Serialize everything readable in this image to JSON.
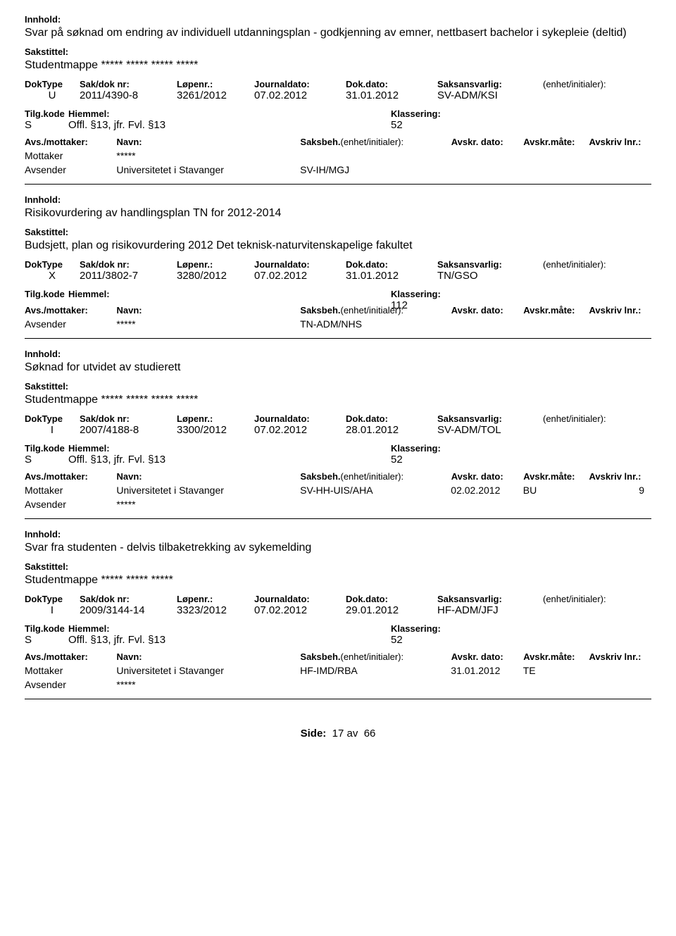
{
  "labels": {
    "innhold": "Innhold:",
    "sakstittel": "Sakstittel:",
    "dokType": "DokType",
    "sakNr": "Sak/dok nr:",
    "lopenr": "Løpenr.:",
    "journaldato": "Journaldato:",
    "dokdato": "Dok.dato:",
    "saksansvarlig": "Saksansvarlig:",
    "enhetInit": "(enhet/initialer):",
    "tilgKode": "Tilg.kode",
    "hiemmel": "Hiemmel:",
    "klassering": "Klassering:",
    "avsMottaker": "Avs./mottaker:",
    "navn": "Navn:",
    "saksbeh": "Saksbeh.",
    "saksbehEnhet": "(enhet/initialer):",
    "avskrDato": "Avskr. dato:",
    "avskrMate": "Avskr.måte:",
    "avskrivLnr": "Avskriv lnr.:",
    "side": "Side:",
    "av": "av"
  },
  "page": {
    "current": "17",
    "total": "66"
  },
  "records": [
    {
      "innhold": "Svar på søknad om endring av individuell utdanningsplan - godkjenning av emner, nettbasert bachelor i sykepleie (deltid)",
      "sakstittel": "Studentmappe ***** ***** ***** *****",
      "dokType": "U",
      "sakNr": "2011/4390-8",
      "lopenr": "3261/2012",
      "journaldato": "07.02.2012",
      "dokdato": "31.01.2012",
      "saksansvarlig": "SV-ADM/KSI",
      "tilgKode": "S",
      "hiemmel": "Offl. §13, jfr. Fvl. §13",
      "klassering": "52",
      "parties": [
        {
          "role": "Mottaker",
          "navn": "*****",
          "saksbeh": "",
          "avdato": "",
          "avmate": "",
          "avlnr": ""
        },
        {
          "role": "Avsender",
          "navn": "Universitetet i Stavanger",
          "saksbeh": "SV-IH/MGJ",
          "avdato": "",
          "avmate": "",
          "avlnr": ""
        }
      ]
    },
    {
      "innhold": "Risikovurdering av handlingsplan TN for 2012-2014",
      "sakstittel": "Budsjett, plan og risikovurdering 2012 Det teknisk-naturvitenskapelige fakultet",
      "dokType": "X",
      "sakNr": "2011/3802-7",
      "lopenr": "3280/2012",
      "journaldato": "07.02.2012",
      "dokdato": "31.01.2012",
      "saksansvarlig": "TN/GSO",
      "tilgKode": "",
      "hiemmel": "",
      "klassering": "112",
      "parties": [
        {
          "role": "Avsender",
          "navn": "*****",
          "saksbeh": "TN-ADM/NHS",
          "avdato": "",
          "avmate": "",
          "avlnr": ""
        }
      ]
    },
    {
      "innhold": "Søknad for utvidet av studierett",
      "sakstittel": "Studentmappe ***** ***** ***** *****",
      "dokType": "I",
      "sakNr": "2007/4188-8",
      "lopenr": "3300/2012",
      "journaldato": "07.02.2012",
      "dokdato": "28.01.2012",
      "saksansvarlig": "SV-ADM/TOL",
      "tilgKode": "S",
      "hiemmel": "Offl. §13, jfr. Fvl. §13",
      "klassering": "52",
      "parties": [
        {
          "role": "Mottaker",
          "navn": "Universitetet i Stavanger",
          "saksbeh": "SV-HH-UIS/AHA",
          "avdato": "02.02.2012",
          "avmate": "BU",
          "avlnr": "9"
        },
        {
          "role": "Avsender",
          "navn": "*****",
          "saksbeh": "",
          "avdato": "",
          "avmate": "",
          "avlnr": ""
        }
      ]
    },
    {
      "innhold": "Svar fra studenten - delvis tilbaketrekking av sykemelding",
      "sakstittel": "Studentmappe ***** ***** *****",
      "dokType": "I",
      "sakNr": "2009/3144-14",
      "lopenr": "3323/2012",
      "journaldato": "07.02.2012",
      "dokdato": "29.01.2012",
      "saksansvarlig": "HF-ADM/JFJ",
      "tilgKode": "S",
      "hiemmel": "Offl. §13, jfr. Fvl. §13",
      "klassering": "52",
      "parties": [
        {
          "role": "Mottaker",
          "navn": "Universitetet i Stavanger",
          "saksbeh": "HF-IMD/RBA",
          "avdato": "31.01.2012",
          "avmate": "TE",
          "avlnr": ""
        },
        {
          "role": "Avsender",
          "navn": "*****",
          "saksbeh": "",
          "avdato": "",
          "avmate": "",
          "avlnr": ""
        }
      ]
    }
  ]
}
